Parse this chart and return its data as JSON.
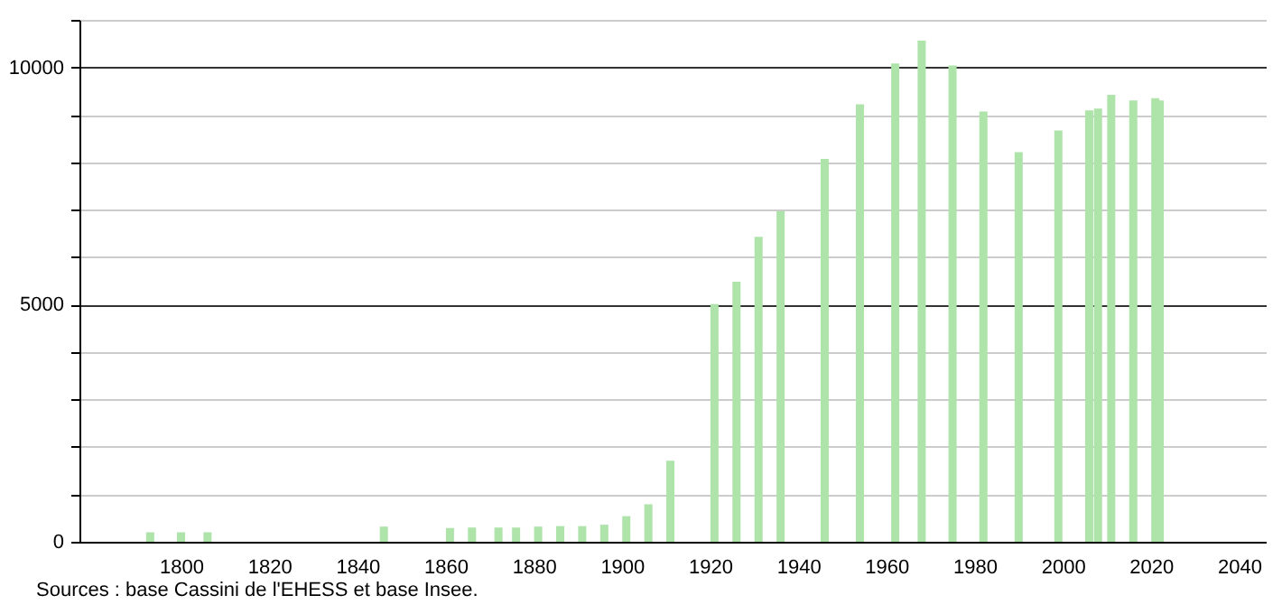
{
  "chart_data": {
    "type": "bar",
    "x": [
      1793,
      1800,
      1806,
      1846,
      1861,
      1866,
      1872,
      1876,
      1881,
      1886,
      1891,
      1896,
      1901,
      1906,
      1911,
      1921,
      1926,
      1931,
      1936,
      1946,
      1954,
      1962,
      1968,
      1975,
      1982,
      1990,
      1999,
      2006,
      2008,
      2011,
      2016,
      2021,
      2022
    ],
    "values": [
      200,
      200,
      200,
      320,
      290,
      300,
      300,
      300,
      320,
      330,
      330,
      360,
      540,
      790,
      1710,
      5010,
      5480,
      6430,
      6970,
      8070,
      9220,
      10080,
      10560,
      10040,
      9070,
      8210,
      8670,
      9090,
      9130,
      9420,
      9300,
      9350,
      9300
    ],
    "color": "#aee3a9",
    "xlim": [
      1779,
      2044
    ],
    "xticks": [
      1800,
      1820,
      1840,
      1860,
      1880,
      1900,
      1920,
      1940,
      1960,
      1980,
      2000,
      2020,
      2040
    ],
    "ylim": [
      0,
      11000
    ],
    "yticks": [
      0,
      {
        "value": 1000,
        "label": null
      },
      {
        "value": 2000,
        "label": null
      },
      {
        "value": 3000,
        "label": null
      },
      {
        "value": 4000,
        "label": null
      },
      5000,
      {
        "value": 6000,
        "label": null
      },
      {
        "value": 7000,
        "label": null
      },
      {
        "value": 8000,
        "label": null
      },
      {
        "value": 9000,
        "label": null
      },
      10000,
      {
        "value": 11000,
        "label": null
      }
    ],
    "grid": "y",
    "annotations": [
      "Sources : base Cassini de l'EHESS et base Insee."
    ]
  }
}
